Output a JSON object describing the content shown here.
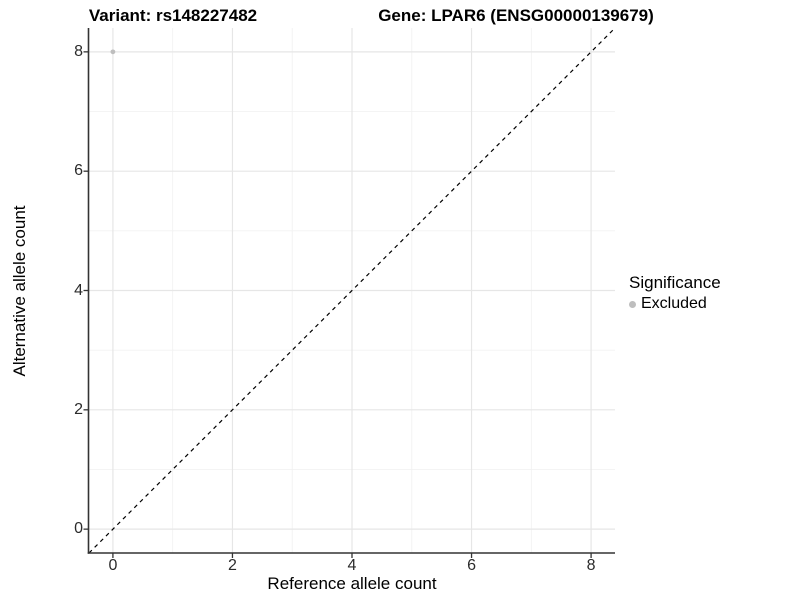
{
  "titles": {
    "variant": "Variant: rs148227482",
    "gene": "Gene: LPAR6 (ENSG00000139679)"
  },
  "legend": {
    "title": "Significance",
    "items": [
      {
        "label": "Excluded",
        "color": "#bebebe"
      }
    ]
  },
  "chart_data": {
    "type": "scatter",
    "title": "Variant: rs148227482   Gene: LPAR6 (ENSG00000139679)",
    "xlabel": "Reference allele count",
    "ylabel": "Alternative allele count",
    "xlim": [
      -0.4,
      8.4
    ],
    "ylim": [
      -0.4,
      8.4
    ],
    "x_ticks": [
      0,
      2,
      4,
      6,
      8
    ],
    "y_ticks": [
      0,
      2,
      4,
      6,
      8
    ],
    "x_minor_ticks": [
      1,
      3,
      5,
      7
    ],
    "y_minor_ticks": [
      1,
      3,
      5,
      7
    ],
    "grid": true,
    "legend_position": "right",
    "series": [
      {
        "name": "Excluded",
        "color": "#bebebe",
        "points": [
          {
            "x": 0,
            "y": 8
          }
        ]
      }
    ],
    "reference_line": {
      "type": "identity",
      "style": "dashed",
      "color": "#000000"
    }
  },
  "colors": {
    "background": "#ffffff",
    "grid_major": "#e6e6e6",
    "grid_minor": "#f2f2f2",
    "axis_line": "#333333",
    "tick_mark": "#333333",
    "point": "#bebebe",
    "dashed_line": "#000000"
  }
}
